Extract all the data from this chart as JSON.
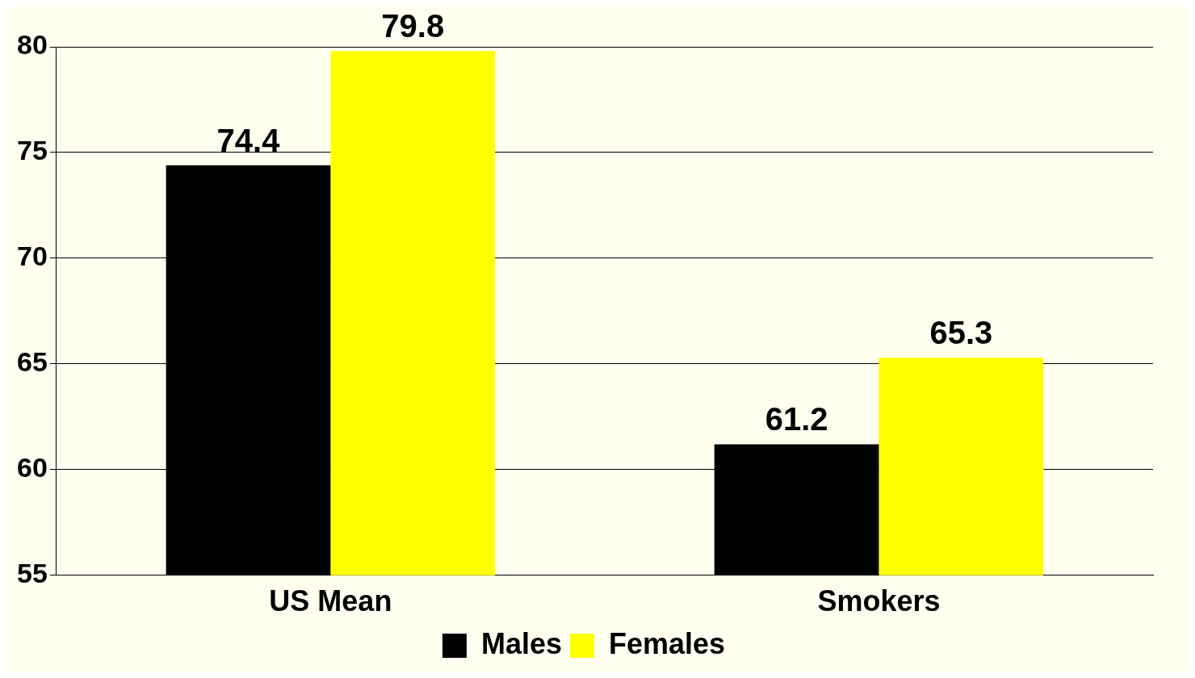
{
  "chart_data": {
    "type": "bar",
    "categories": [
      "US Mean",
      "Smokers"
    ],
    "series": [
      {
        "name": "Males",
        "color": "#000000",
        "values": [
          74.4,
          61.2
        ]
      },
      {
        "name": "Females",
        "color": "#ffff00",
        "values": [
          79.8,
          65.3
        ]
      }
    ],
    "ylim": [
      55,
      80
    ],
    "yticks": [
      55,
      60,
      65,
      70,
      75,
      80
    ],
    "grid": "y",
    "legend": "bottom",
    "data_labels": true
  }
}
